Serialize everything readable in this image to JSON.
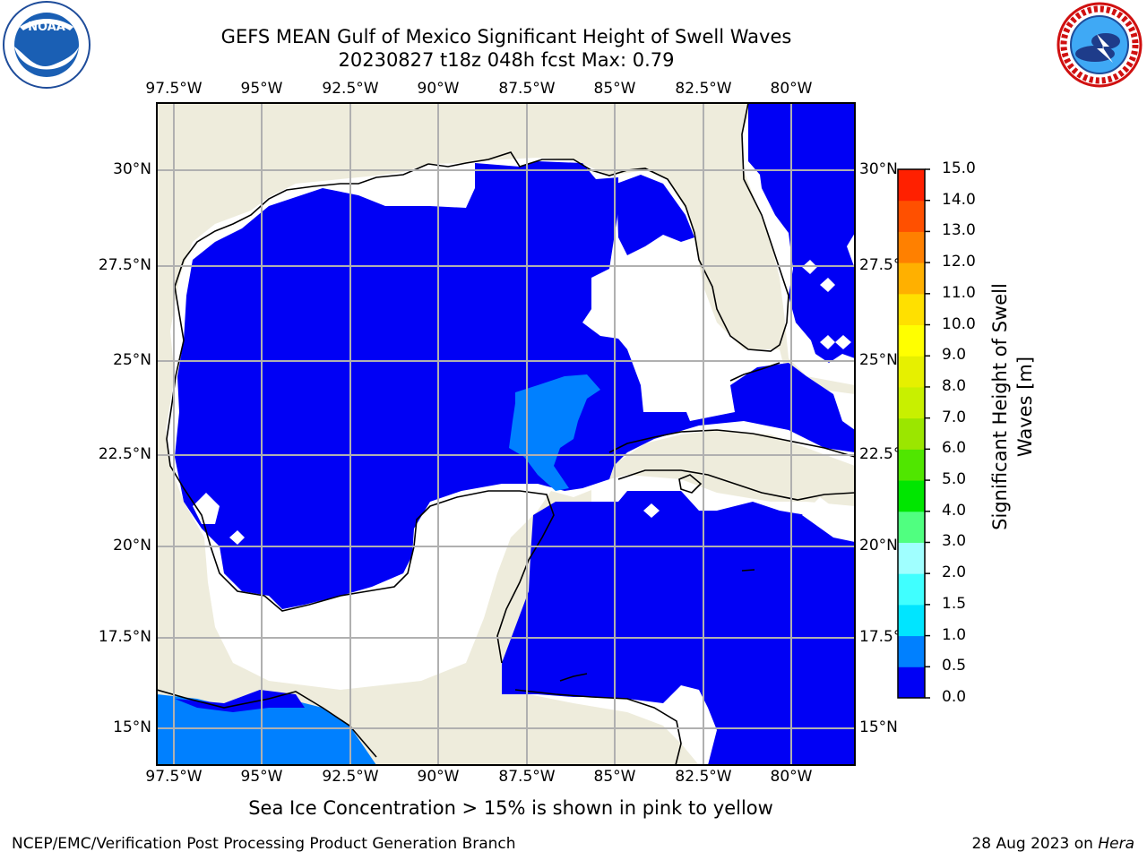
{
  "title_line1": "GEFS MEAN Gulf of Mexico Significant Height of Swell Waves",
  "title_line2": "20230827 t18z 048h fcst   Max: 0.79",
  "lon_labels": [
    "97.5°W",
    "95°W",
    "92.5°W",
    "90°W",
    "87.5°W",
    "85°W",
    "82.5°W",
    "80°W"
  ],
  "lat_labels": [
    "30°N",
    "27.5°N",
    "25°N",
    "22.5°N",
    "20°N",
    "17.5°N",
    "15°N"
  ],
  "colorbar": {
    "label": "Significant Height of Swell Waves [m]",
    "label_line1": "Significant Height of Swell",
    "label_line2": "Waves [m]",
    "ticks": [
      "15.0",
      "14.0",
      "13.0",
      "12.0",
      "11.0",
      "10.0",
      "9.0",
      "8.0",
      "7.0",
      "6.0",
      "5.0",
      "4.0",
      "3.0",
      "2.0",
      "1.5",
      "1.0",
      "0.5",
      "0.0"
    ],
    "colors_bottom_to_top": [
      "#0000f5",
      "#0080ff",
      "#00e5ff",
      "#40ffff",
      "#a0ffff",
      "#50ff80",
      "#00e600",
      "#50e600",
      "#9be600",
      "#c8f000",
      "#e6f000",
      "#ffff00",
      "#ffe000",
      "#ffb000",
      "#ff8000",
      "#ff5000",
      "#ff2000"
    ]
  },
  "map": {
    "land_color": "#eeecdc",
    "ocean_no_data_color": "#ffffff",
    "swell_low_color": "#0000f5",
    "swell_mid_color": "#0080ff",
    "grid_color": "#b0b0b0"
  },
  "caption": "Sea Ice Concentration > 15% is shown in pink to yellow",
  "footer_left": "NCEP/EMC/Verification Post Processing Product Generation Branch",
  "footer_date": "28 Aug 2023 on ",
  "footer_host": "Hera",
  "logos": {
    "noaa": "NOAA",
    "nws_ring": "NATIONAL WEATHER SERVICE"
  }
}
